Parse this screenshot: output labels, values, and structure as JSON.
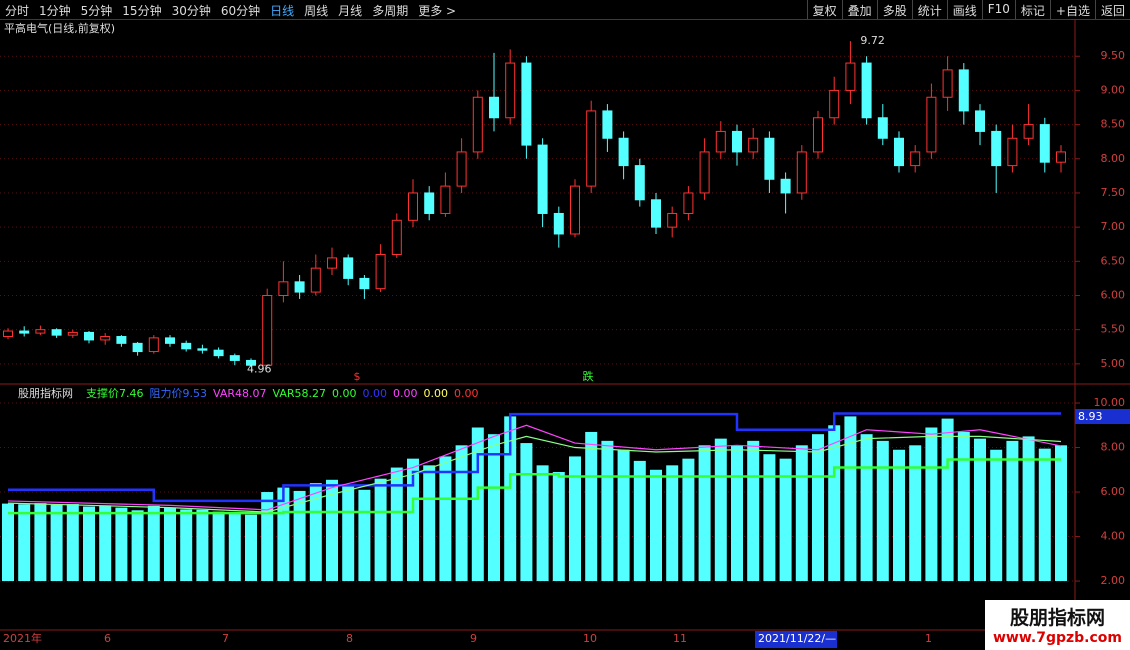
{
  "toolbar": {
    "left": [
      "分时",
      "1分钟",
      "5分钟",
      "15分钟",
      "30分钟",
      "60分钟",
      "日线",
      "周线",
      "月线",
      "多周期",
      "更多 >"
    ],
    "active": "日线",
    "right": [
      "复权",
      "叠加",
      "多股",
      "统计",
      "画线",
      "F10",
      "标记",
      "+自选",
      "返回"
    ]
  },
  "main": {
    "type": "candlestick",
    "title": "平高电气(日线,前复权)",
    "ylim": [
      4.72,
      10.03
    ],
    "yticks": [
      {
        "value": 5,
        "label": "5.00"
      },
      {
        "value": 5.5,
        "label": "5.50"
      },
      {
        "value": 6,
        "label": "6.00"
      },
      {
        "value": 6.5,
        "label": "6.50"
      },
      {
        "value": 7,
        "label": "7.00"
      },
      {
        "value": 7.5,
        "label": "7.50"
      },
      {
        "value": 8,
        "label": "8.00"
      },
      {
        "value": 8.5,
        "label": "8.50"
      },
      {
        "value": 9,
        "label": "9.00"
      },
      {
        "value": 9.5,
        "label": "9.50"
      }
    ],
    "up_color": "#ff3232",
    "down_color": "#54ffff",
    "open": [
      5.4,
      5.48,
      5.45,
      5.5,
      5.42,
      5.46,
      5.35,
      5.4,
      5.3,
      5.18,
      5.38,
      5.3,
      5.22,
      5.2,
      5.12,
      5.05,
      4.98,
      6.0,
      6.2,
      6.05,
      6.4,
      6.55,
      6.25,
      6.1,
      6.6,
      7.1,
      7.5,
      7.2,
      7.6,
      8.1,
      8.9,
      8.6,
      9.4,
      8.2,
      7.2,
      6.9,
      7.6,
      8.7,
      8.3,
      7.9,
      7.4,
      7.0,
      7.2,
      7.5,
      8.1,
      8.4,
      8.1,
      8.3,
      7.7,
      7.5,
      8.1,
      8.6,
      9.0,
      9.4,
      8.6,
      8.3,
      7.9,
      8.1,
      8.9,
      9.3,
      8.7,
      8.4,
      7.9,
      8.3,
      8.5,
      7.95
    ],
    "close": [
      5.48,
      5.45,
      5.5,
      5.42,
      5.46,
      5.35,
      5.4,
      5.3,
      5.18,
      5.38,
      5.3,
      5.22,
      5.2,
      5.12,
      5.05,
      4.98,
      6.0,
      6.2,
      6.05,
      6.4,
      6.55,
      6.25,
      6.1,
      6.6,
      7.1,
      7.5,
      7.2,
      7.6,
      8.1,
      8.9,
      8.6,
      9.4,
      8.2,
      7.2,
      6.9,
      7.6,
      8.7,
      8.3,
      7.9,
      7.4,
      7.0,
      7.2,
      7.5,
      8.1,
      8.4,
      8.1,
      8.3,
      7.7,
      7.5,
      8.1,
      8.6,
      9.0,
      9.4,
      8.6,
      8.3,
      7.9,
      8.1,
      8.9,
      9.3,
      8.7,
      8.4,
      7.9,
      8.3,
      8.5,
      7.95,
      8.1
    ],
    "high": [
      5.52,
      5.55,
      5.56,
      5.52,
      5.5,
      5.48,
      5.45,
      5.42,
      5.32,
      5.42,
      5.42,
      5.34,
      5.28,
      5.24,
      5.15,
      5.08,
      6.1,
      6.5,
      6.3,
      6.6,
      6.7,
      6.6,
      6.3,
      6.75,
      7.2,
      7.7,
      7.6,
      7.8,
      8.3,
      9.0,
      9.55,
      9.6,
      9.5,
      8.3,
      7.3,
      7.7,
      8.85,
      8.8,
      8.4,
      8.0,
      7.5,
      7.3,
      7.6,
      8.3,
      8.55,
      8.5,
      8.45,
      8.4,
      7.8,
      8.2,
      8.7,
      9.2,
      9.72,
      9.5,
      8.8,
      8.4,
      8.2,
      9.1,
      9.5,
      9.4,
      8.8,
      8.5,
      8.5,
      8.8,
      8.6,
      8.2
    ],
    "low": [
      5.36,
      5.4,
      5.42,
      5.38,
      5.38,
      5.3,
      5.28,
      5.25,
      5.12,
      5.15,
      5.25,
      5.18,
      5.15,
      5.08,
      4.98,
      4.96,
      4.96,
      5.9,
      5.95,
      6.0,
      6.3,
      6.15,
      5.95,
      6.05,
      6.55,
      7.0,
      7.1,
      7.15,
      7.5,
      8.0,
      8.4,
      8.5,
      8.0,
      7.0,
      6.7,
      6.85,
      7.5,
      8.1,
      7.7,
      7.3,
      6.9,
      6.85,
      7.1,
      7.4,
      8.0,
      7.9,
      8.0,
      7.5,
      7.2,
      7.4,
      8.0,
      8.5,
      8.8,
      8.5,
      8.2,
      7.8,
      7.8,
      8.0,
      8.7,
      8.5,
      8.2,
      7.5,
      7.8,
      8.2,
      7.8,
      7.8
    ],
    "high_note": 9.72,
    "low_note": 4.96,
    "signals": [
      "$",
      "跌"
    ]
  },
  "indicator": {
    "title": "股朋指标网",
    "ylim": [
      -0.2,
      10.81
    ],
    "yticks": [
      {
        "value": 2,
        "label": "2.00"
      },
      {
        "value": 4,
        "label": "4.00"
      },
      {
        "value": 6,
        "label": "6.00"
      },
      {
        "value": 8,
        "label": "8.00"
      },
      {
        "value": 10,
        "label": "10.00"
      }
    ],
    "bar_color": "#54ffff",
    "current": 8.93,
    "legend": [
      {
        "name": "支撑价",
        "value": 7.46,
        "color": "#33ff33"
      },
      {
        "name": "阻力价",
        "value": 9.53,
        "color": "#3366ff"
      },
      {
        "name": "VAR4",
        "value": 8.07,
        "color": "#ff44ff"
      },
      {
        "name": "VAR5",
        "value": 8.27,
        "color": "#33ff33"
      },
      {
        "value": {
          "value": 0,
          "label": "0.00"
        },
        "color": "#33ff33"
      },
      {
        "value": {
          "value": 0,
          "label": "0.00"
        },
        "color": "#3333ff"
      },
      {
        "value": {
          "value": 0,
          "label": "0.00"
        },
        "color": "#ff44ff"
      },
      {
        "value": {
          "value": 0,
          "label": "0.00"
        },
        "color": "#ffff66"
      },
      {
        "value": {
          "value": 0,
          "label": "0.00"
        },
        "color": "#ff3232"
      }
    ],
    "series": [
      {
        "name": "支撑价",
        "style": "step",
        "color": "#33ff33",
        "x": [
          0,
          17,
          25,
          29,
          31,
          34,
          51,
          58,
          65
        ],
        "values": [
          5.05,
          5.1,
          5.7,
          6.2,
          6.8,
          6.7,
          7.1,
          7.46,
          7.46
        ]
      },
      {
        "name": "阻力价",
        "style": "step",
        "color": "#2233ff",
        "x": [
          0,
          9,
          17,
          25,
          29,
          31,
          45,
          51,
          65
        ],
        "values": [
          6.1,
          5.6,
          6.3,
          6.9,
          7.7,
          9.5,
          8.8,
          9.53,
          9.53
        ]
      },
      {
        "name": "VAR4",
        "style": "line",
        "color": "#ff44ff",
        "x": [
          0,
          10,
          16,
          20,
          25,
          30,
          32,
          35,
          40,
          45,
          50,
          53,
          57,
          60,
          65
        ],
        "values": [
          5.6,
          5.4,
          5.2,
          6.2,
          7.1,
          8.5,
          9.0,
          8.2,
          7.9,
          8.1,
          7.9,
          8.8,
          8.6,
          8.8,
          8.07
        ]
      },
      {
        "name": "VAR5",
        "style": "line",
        "color": "#88ff88",
        "x": [
          0,
          10,
          16,
          20,
          25,
          30,
          32,
          35,
          40,
          45,
          50,
          53,
          57,
          60,
          65
        ],
        "values": [
          5.5,
          5.3,
          5.1,
          5.9,
          6.8,
          8.1,
          8.5,
          8.0,
          7.8,
          7.9,
          7.8,
          8.4,
          8.5,
          8.5,
          8.27
        ]
      }
    ]
  },
  "xaxis": [
    "2021年",
    "6",
    "7",
    "8",
    "9",
    "10",
    "11",
    "2021/11/22/—",
    "1"
  ],
  "watermark": {
    "title": "股朋指标网",
    "url": "www.7gpzb.com"
  }
}
